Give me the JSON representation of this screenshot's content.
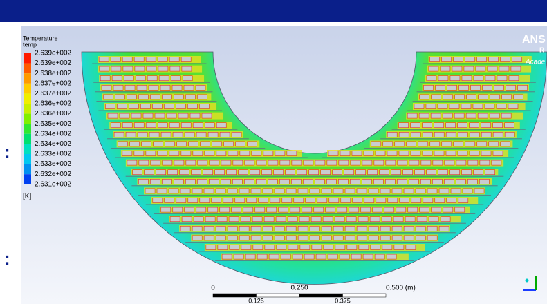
{
  "legend": {
    "title": "Temperature",
    "variable": "temp",
    "labels": [
      "2.639e+002",
      "2.639e+002",
      "2.638e+002",
      "2.637e+002",
      "2.637e+002",
      "2.636e+002",
      "2.636e+002",
      "2.635e+002",
      "2.634e+002",
      "2.634e+002",
      "2.633e+002",
      "2.633e+002",
      "2.632e+002",
      "2.631e+002"
    ],
    "unit": "[K]"
  },
  "scale": {
    "labels": [
      "0",
      "0.250",
      "0.500 (m)"
    ],
    "sublabels": [
      "0.125",
      "0.375"
    ]
  },
  "logo": {
    "line1": "ANS",
    "line2": "R",
    "line3": "Acade"
  },
  "side_marks": [
    ":",
    ":"
  ]
}
